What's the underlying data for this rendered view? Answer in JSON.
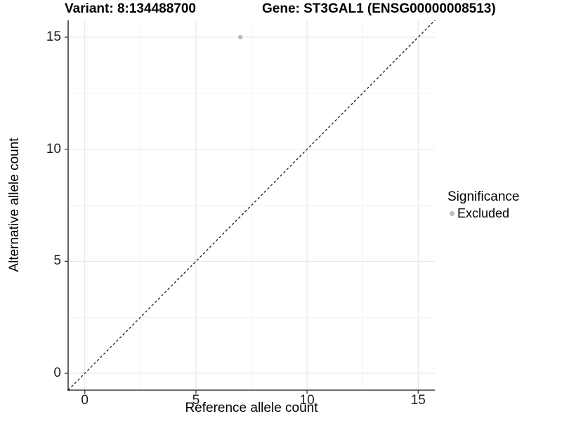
{
  "chart_data": {
    "type": "scatter",
    "variant_title": "Variant: 8:134488700",
    "gene_title": "Gene: ST3GAL1 (ENSG00000008513)",
    "xlabel": "Reference allele count",
    "ylabel": "Alternative allele count",
    "xlim": [
      -0.75,
      15.75
    ],
    "ylim": [
      -0.75,
      15.75
    ],
    "x_ticks": [
      0,
      5,
      10,
      15
    ],
    "y_ticks": [
      0,
      5,
      10,
      15
    ],
    "x_minor_ticks": [
      2.5,
      7.5,
      12.5
    ],
    "y_minor_ticks": [
      2.5,
      7.5,
      12.5
    ],
    "grid": true,
    "points": [
      {
        "x": 7,
        "y": 15,
        "series": "Excluded"
      }
    ],
    "identity_line": {
      "slope": 1,
      "intercept": 0,
      "style": "dashed"
    },
    "legend": {
      "title": "Significance",
      "position": "right",
      "entries": [
        {
          "label": "Excluded",
          "color": "#bdbdbd"
        }
      ]
    }
  },
  "colors": {
    "background": "#ffffff",
    "point": "#bdbdbd",
    "grid_major": "#e4e4e4",
    "grid_minor": "#f1f1f1",
    "axis_line": "#3c3c3c",
    "tick_mark": "#333333",
    "identity_line": "#1a1a1a",
    "text": "#000000"
  }
}
